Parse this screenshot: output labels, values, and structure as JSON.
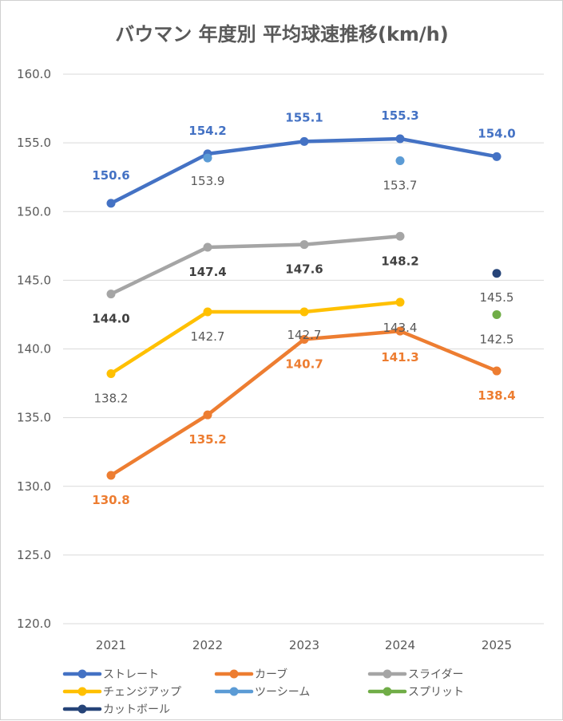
{
  "chart_data": {
    "type": "line",
    "title": "バウマン 年度別 平均球速推移(km/h)",
    "categories": [
      "2021",
      "2022",
      "2023",
      "2024",
      "2025"
    ],
    "ylim": [
      120,
      160
    ],
    "yticks": [
      "120.0",
      "125.0",
      "130.0",
      "135.0",
      "140.0",
      "145.0",
      "150.0",
      "155.0",
      "160.0"
    ],
    "grid": true,
    "legend_position": "bottom",
    "series": [
      {
        "name": "ストレート",
        "color": "#4472C4",
        "values": [
          150.6,
          154.2,
          155.1,
          155.3,
          154.0
        ],
        "labels": [
          "150.6",
          "154.2",
          "155.1",
          "155.3",
          "154.0"
        ]
      },
      {
        "name": "カーブ",
        "color": "#ED7D31",
        "values": [
          130.8,
          135.2,
          140.7,
          141.3,
          138.4
        ],
        "labels": [
          "130.8",
          "135.2",
          "140.7",
          "141.3",
          "138.4"
        ]
      },
      {
        "name": "スライダー",
        "color": "#A5A5A5",
        "values": [
          144.0,
          147.4,
          147.6,
          148.2,
          null
        ],
        "labels": [
          "144.0",
          "147.4",
          "147.6",
          "148.2",
          ""
        ]
      },
      {
        "name": "チェンジアップ",
        "color": "#FFC000",
        "values": [
          138.2,
          142.7,
          142.7,
          143.4,
          null
        ],
        "labels": [
          "138.2",
          "142.7",
          "142.7",
          "143.4",
          ""
        ]
      },
      {
        "name": "ツーシーム",
        "color": "#5B9BD5",
        "values": [
          null,
          153.9,
          null,
          153.7,
          null
        ],
        "labels": [
          "",
          "153.9",
          "",
          "153.7",
          ""
        ]
      },
      {
        "name": "スプリット",
        "color": "#70AD47",
        "values": [
          null,
          null,
          null,
          null,
          142.5
        ],
        "labels": [
          "",
          "",
          "",
          "",
          "142.5"
        ]
      },
      {
        "name": "カットボール",
        "color": "#264478",
        "values": [
          null,
          null,
          null,
          null,
          145.5
        ],
        "labels": [
          "",
          "",
          "",
          "",
          "145.5"
        ]
      }
    ]
  }
}
